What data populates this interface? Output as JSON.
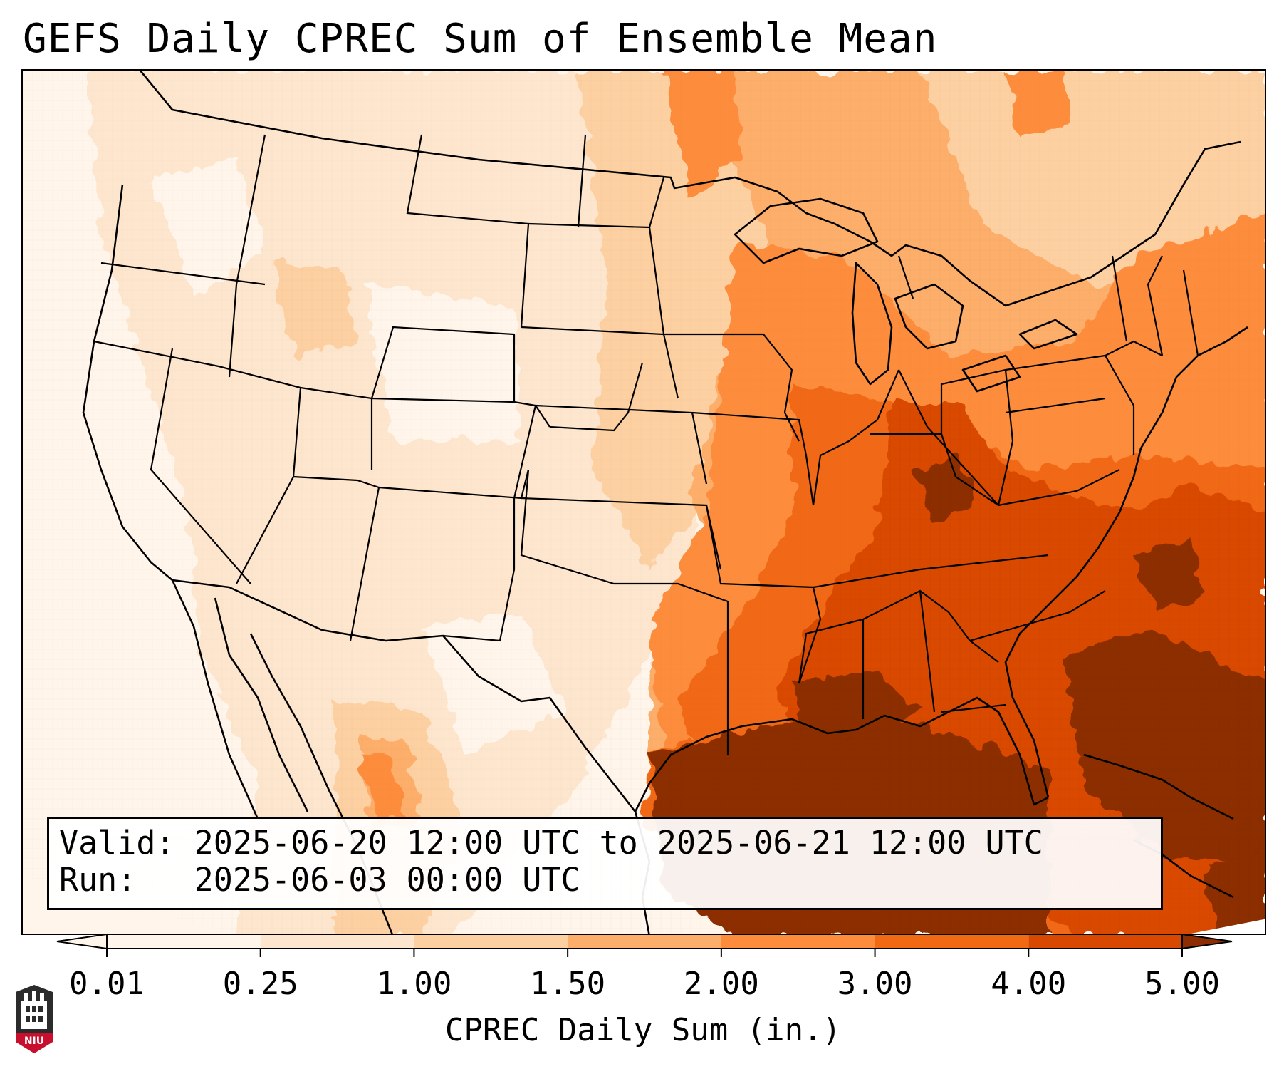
{
  "title": "GEFS Daily CPREC Sum of Ensemble Mean",
  "info": {
    "valid_label": "Valid:",
    "valid_value": "2025-06-20 12:00 UTC to 2025-06-21 12:00 UTC",
    "run_label": "Run:",
    "run_value": "2025-06-03 00:00 UTC"
  },
  "colorbar": {
    "label": "CPREC Daily Sum (in.)",
    "ticks": [
      "0.01",
      "0.25",
      "1.00",
      "1.50",
      "2.00",
      "3.00",
      "4.00",
      "5.00"
    ],
    "colors": [
      "#fff5eb",
      "#fee6ce",
      "#fdd0a2",
      "#fdae6b",
      "#fd8d3c",
      "#f16913",
      "#d94801",
      "#8c2d04"
    ],
    "extend": "both"
  },
  "logo_text": "NIU",
  "map": {
    "projection": "Lambert Conformal, CONUS",
    "outlines": "state and country borders, black",
    "field": "convective precipitation daily sum, orange sequential shading"
  }
}
